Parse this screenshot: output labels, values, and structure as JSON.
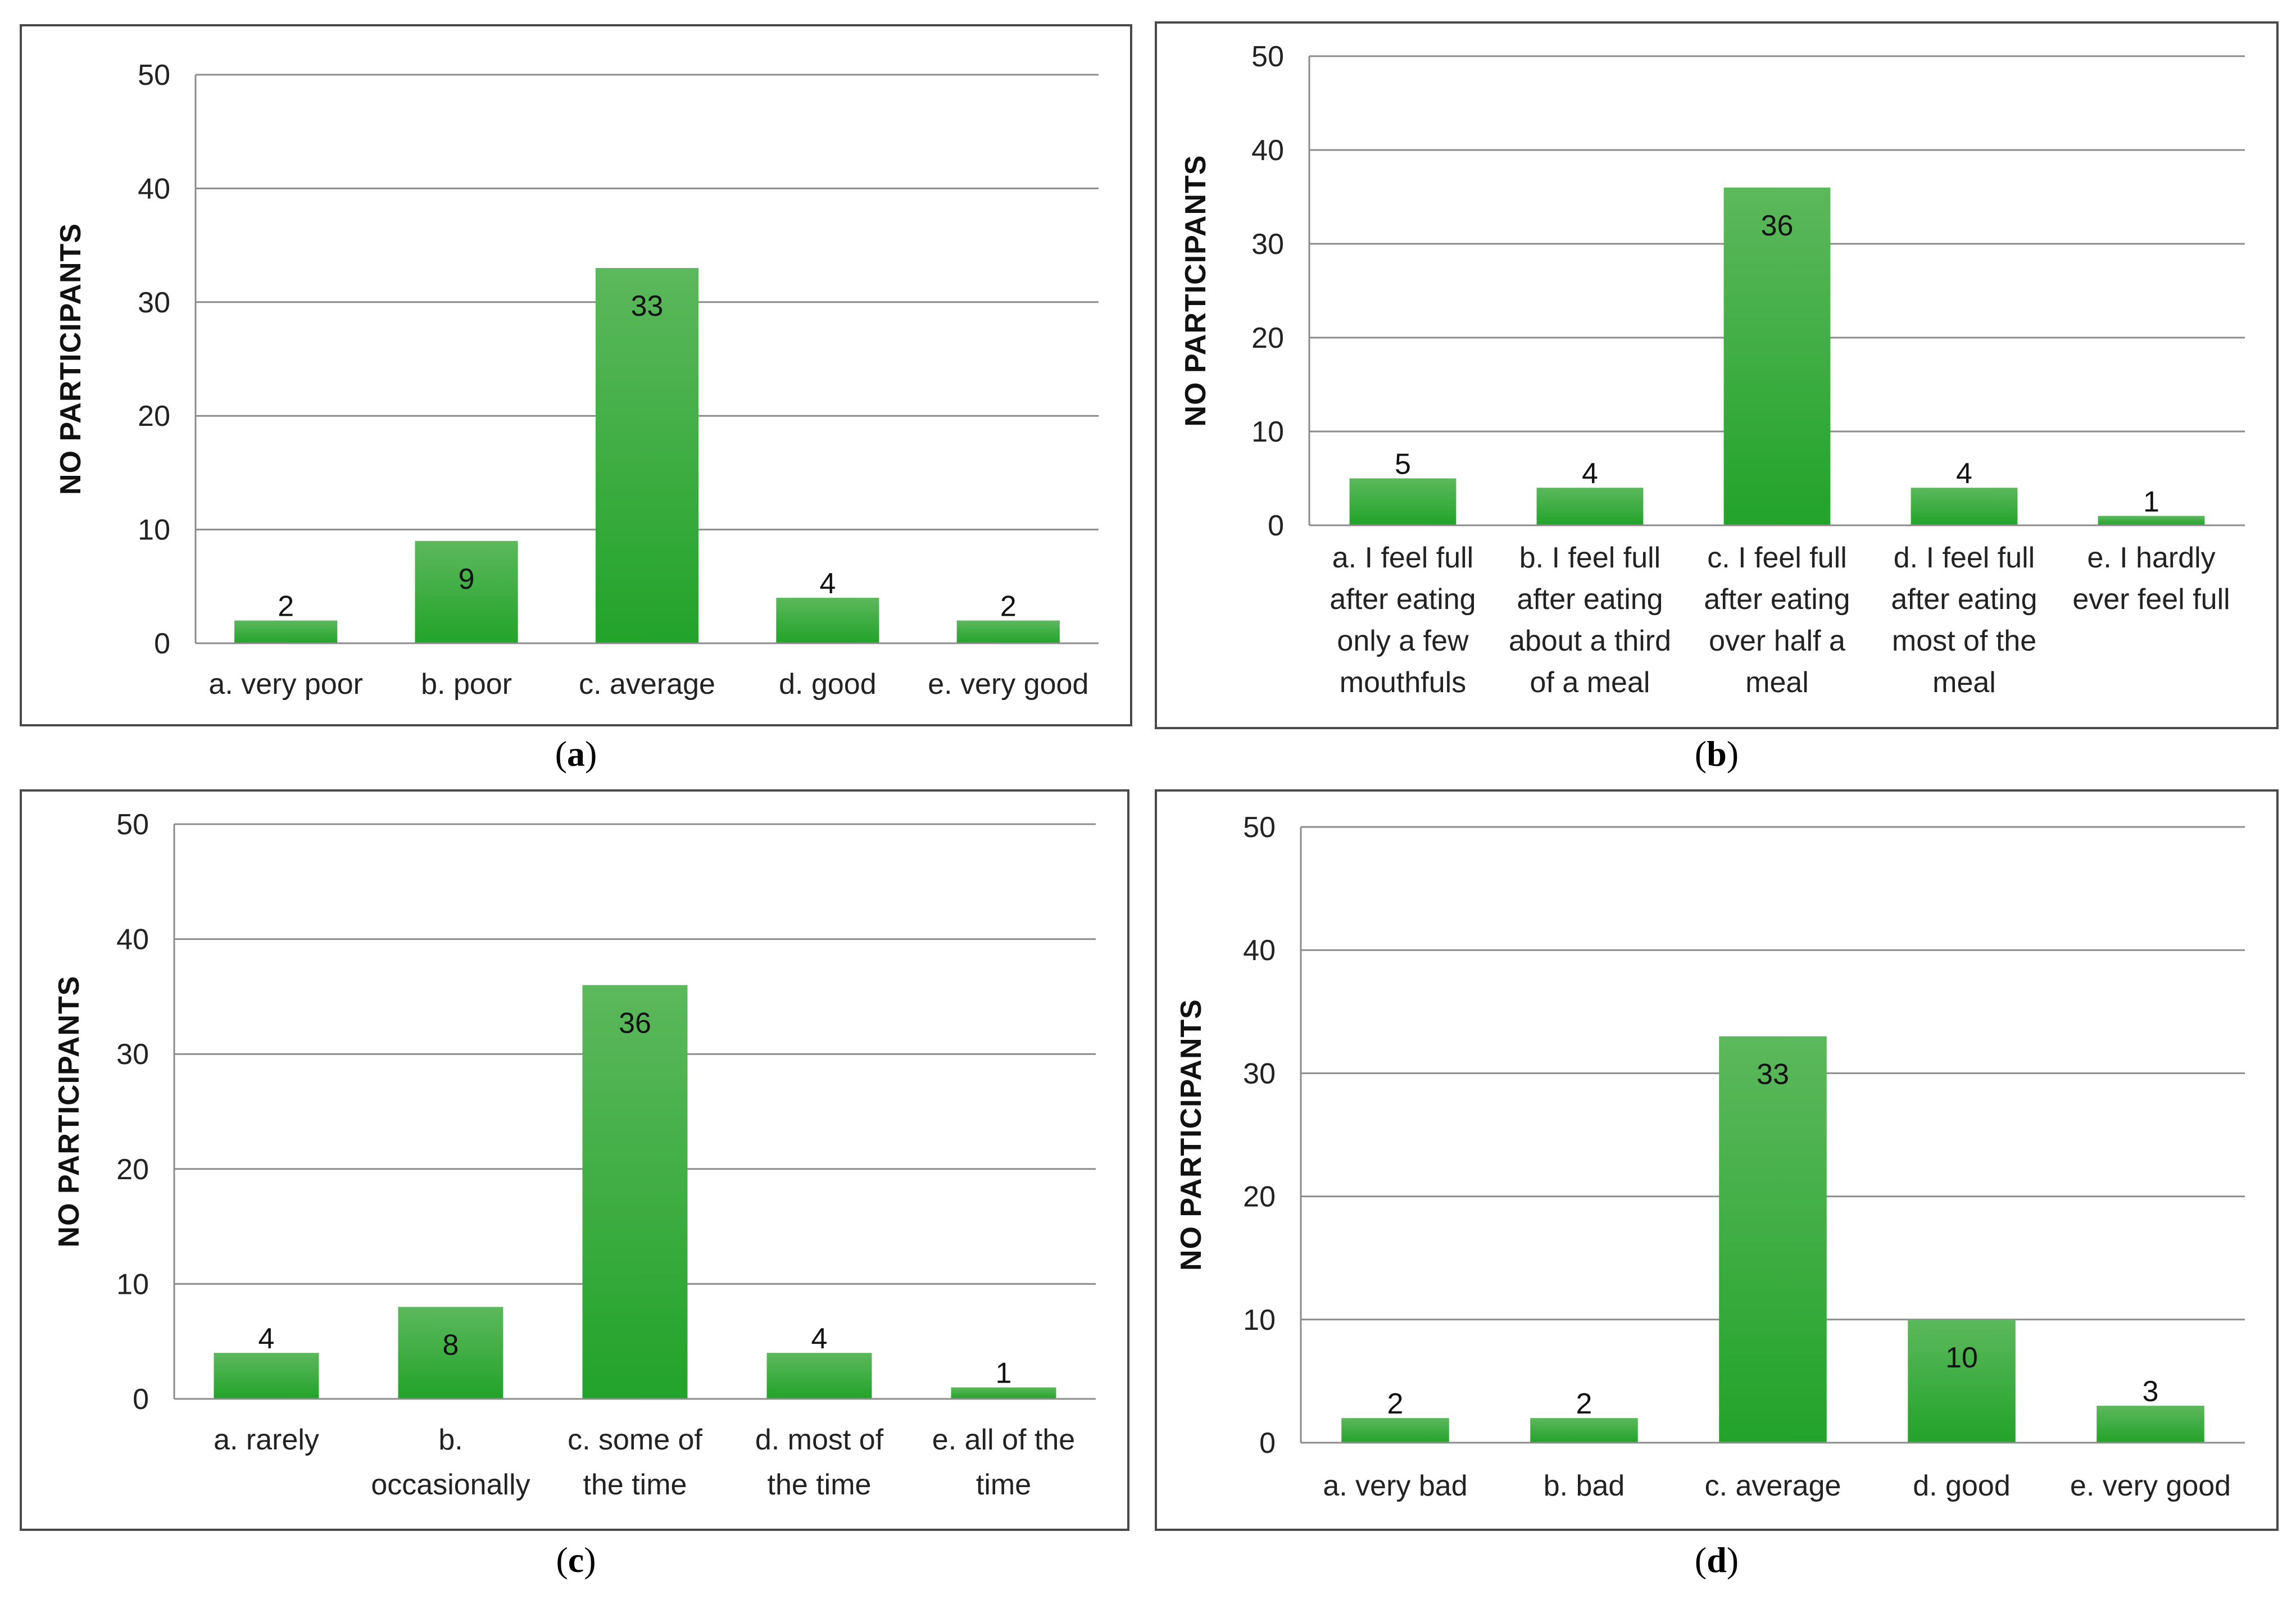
{
  "colors": {
    "bar_top": "#5cb85c",
    "bar_bottom": "#22a32a",
    "grid": "#8c8c8c",
    "axis": "#8c8c8c"
  },
  "chart_data": [
    {
      "id": "a",
      "type": "bar",
      "caption_open": "(",
      "caption_letter": "a",
      "caption_close": ")",
      "ylabel": "NO PARTICIPANTS",
      "ylim": [
        0,
        50
      ],
      "yticks": [
        0,
        10,
        20,
        30,
        40,
        50
      ],
      "categories": [
        [
          "a. very poor"
        ],
        [
          "b. poor"
        ],
        [
          "c. average"
        ],
        [
          "d. good"
        ],
        [
          "e. very good"
        ]
      ],
      "values": [
        2,
        9,
        33,
        4,
        2
      ]
    },
    {
      "id": "b",
      "type": "bar",
      "caption_open": "(",
      "caption_letter": "b",
      "caption_close": ")",
      "ylabel": "NO PARTICIPANTS",
      "ylim": [
        0,
        50
      ],
      "yticks": [
        0,
        10,
        20,
        30,
        40,
        50
      ],
      "categories": [
        [
          "a. I feel full",
          "after eating",
          "only a few",
          "mouthfuls"
        ],
        [
          "b. I feel full",
          "after eating",
          "about a third",
          "of a meal"
        ],
        [
          "c. I feel full",
          "after eating",
          "over half a",
          "meal"
        ],
        [
          "d. I feel full",
          "after eating",
          "most of the",
          "meal"
        ],
        [
          "e. I hardly",
          "ever feel full"
        ]
      ],
      "values": [
        5,
        4,
        36,
        4,
        1
      ]
    },
    {
      "id": "c",
      "type": "bar",
      "caption_open": "(",
      "caption_letter": "c",
      "caption_close": ")",
      "ylabel": "NO PARTICIPANTS",
      "ylim": [
        0,
        50
      ],
      "yticks": [
        0,
        10,
        20,
        30,
        40,
        50
      ],
      "categories": [
        [
          "a. rarely"
        ],
        [
          "b.",
          "occasionally"
        ],
        [
          "c. some of",
          "the time"
        ],
        [
          "d. most of",
          "the time"
        ],
        [
          "e. all of the",
          "time"
        ]
      ],
      "values": [
        4,
        8,
        36,
        4,
        1
      ]
    },
    {
      "id": "d",
      "type": "bar",
      "caption_open": "(",
      "caption_letter": "d",
      "caption_close": ")",
      "ylabel": "NO PARTICIPANTS",
      "ylim": [
        0,
        50
      ],
      "yticks": [
        0,
        10,
        20,
        30,
        40,
        50
      ],
      "categories": [
        [
          "a. very bad"
        ],
        [
          "b. bad"
        ],
        [
          "c. average"
        ],
        [
          "d. good"
        ],
        [
          "e. very good"
        ]
      ],
      "values": [
        2,
        2,
        33,
        10,
        3
      ]
    }
  ]
}
